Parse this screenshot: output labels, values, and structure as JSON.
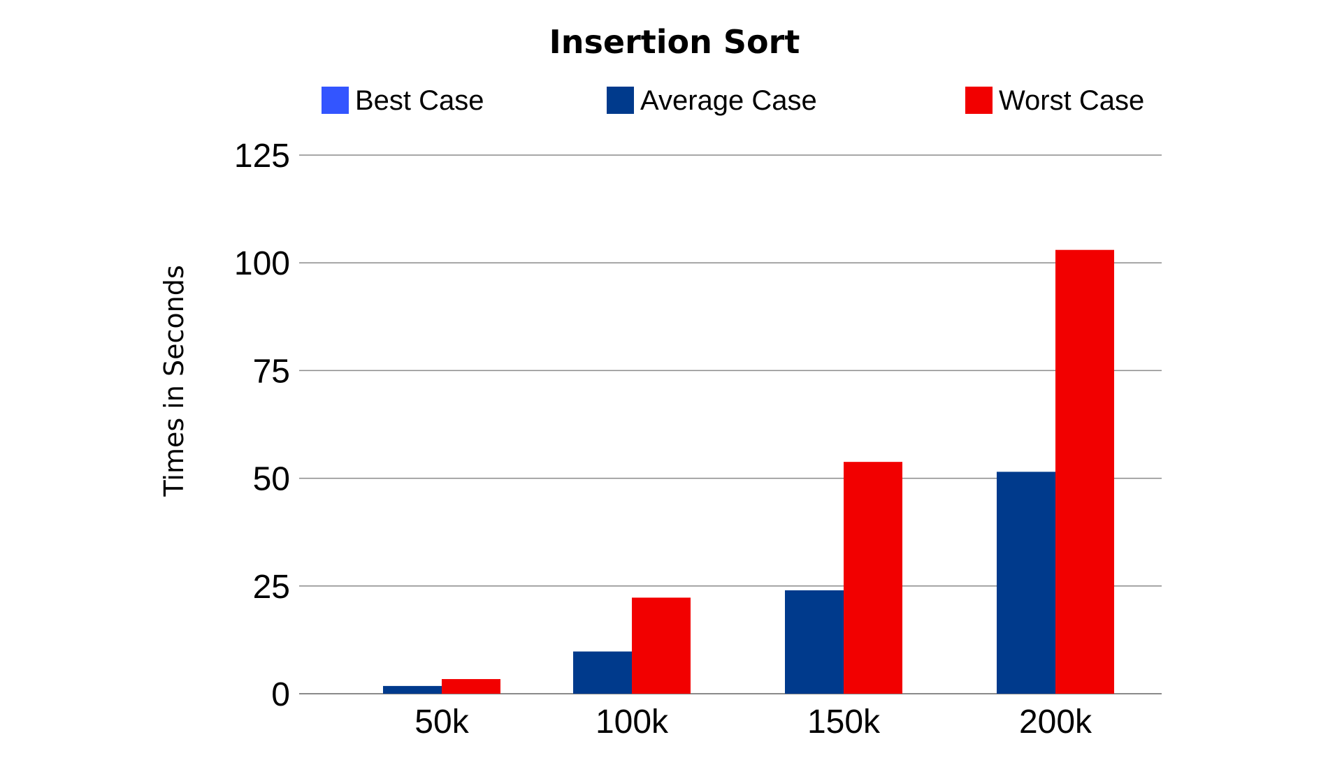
{
  "chart_data": {
    "type": "bar",
    "title": "Insertion Sort",
    "xlabel": "",
    "ylabel": "Times in Seconds",
    "categories": [
      "50k",
      "100k",
      "150k",
      "200k"
    ],
    "ylim": [
      0,
      125
    ],
    "yticks": [
      0,
      25,
      50,
      75,
      100,
      125
    ],
    "grid": true,
    "legend_position": "top",
    "series": [
      {
        "name": "Best Case",
        "color": "#3355ff",
        "values": [
          0,
          0,
          0,
          0
        ]
      },
      {
        "name": "Average Case",
        "color": "#003a8c",
        "values": [
          1.8,
          9.8,
          24,
          51.5
        ]
      },
      {
        "name": "Worst Case",
        "color": "#f20000",
        "values": [
          3.4,
          22.3,
          53.8,
          103
        ]
      }
    ]
  }
}
